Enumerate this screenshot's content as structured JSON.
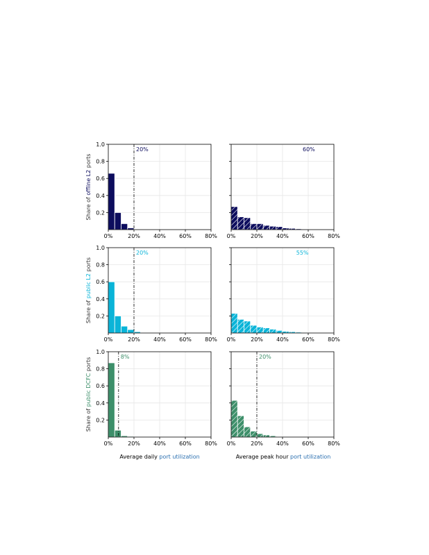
{
  "chart_data": [
    {
      "type": "bar",
      "panel": "offline-L2-daily",
      "color": "#0d0d5e",
      "hatched": false,
      "bin_width_pct": 5,
      "values": [
        0.66,
        0.2,
        0.07,
        0.02,
        0.005,
        0.005
      ],
      "threshold_pct": 20,
      "threshold_label": "20%",
      "show_threshold_line": true,
      "ylabel_pre": "Share of ",
      "ylabel_key": "offline L2",
      "ylabel_post": " ports"
    },
    {
      "type": "bar",
      "panel": "offline-L2-peak",
      "color": "#0d0d5e",
      "hatched": true,
      "bin_width_pct": 5,
      "values": [
        0.27,
        0.15,
        0.14,
        0.07,
        0.07,
        0.05,
        0.04,
        0.035,
        0.02,
        0.015,
        0.01,
        0.007,
        0.004
      ],
      "threshold_pct": 60,
      "threshold_label": "60%",
      "show_threshold_line": false
    },
    {
      "type": "bar",
      "panel": "public-L2-daily",
      "color": "#0ab4d8",
      "hatched": false,
      "bin_width_pct": 5,
      "values": [
        0.6,
        0.2,
        0.08,
        0.04,
        0.015
      ],
      "threshold_pct": 20,
      "threshold_label": "20%",
      "show_threshold_line": true,
      "ylabel_pre": "Share of ",
      "ylabel_key": "public L2",
      "ylabel_post": " ports"
    },
    {
      "type": "bar",
      "panel": "public-L2-peak",
      "color": "#0ab4d8",
      "hatched": true,
      "bin_width_pct": 5,
      "values": [
        0.23,
        0.16,
        0.14,
        0.09,
        0.07,
        0.06,
        0.045,
        0.03,
        0.02,
        0.015,
        0.01,
        0.007
      ],
      "threshold_pct": 55,
      "threshold_label": "55%",
      "show_threshold_line": false
    },
    {
      "type": "bar",
      "panel": "public-DCFC-daily",
      "color": "#3d8f6a",
      "hatched": false,
      "bin_width_pct": 5,
      "values": [
        0.87,
        0.08,
        0.015,
        0.008
      ],
      "threshold_pct": 8,
      "threshold_label": "8%",
      "show_threshold_line": true,
      "ylabel_pre": "Share of ",
      "ylabel_key": "public DCFC",
      "ylabel_post": " ports"
    },
    {
      "type": "bar",
      "panel": "public-DCFC-peak",
      "color": "#3d8f6a",
      "hatched": true,
      "bin_width_pct": 5,
      "values": [
        0.43,
        0.25,
        0.12,
        0.07,
        0.04,
        0.025,
        0.015
      ],
      "threshold_pct": 20,
      "threshold_label": "20%",
      "show_threshold_line": true
    }
  ],
  "axes": {
    "xlim": [
      0,
      80
    ],
    "ylim": [
      0,
      1.0
    ],
    "xticks": [
      "0%",
      "20%",
      "40%",
      "60%",
      "80%"
    ],
    "yticks": [
      "0.2",
      "0.4",
      "0.6",
      "0.8",
      "1.0"
    ],
    "xlabel_left_pre": "Average daily ",
    "xlabel_left_key": "port utilization",
    "xlabel_right_pre": "Average peak hour ",
    "xlabel_right_key": "port utilization"
  }
}
